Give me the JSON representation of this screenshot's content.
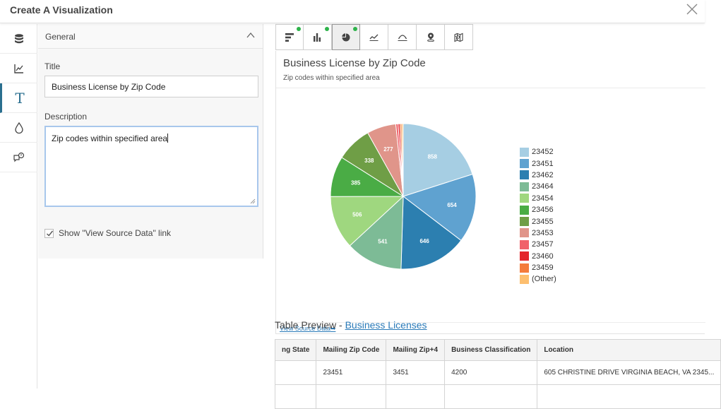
{
  "window": {
    "title": "Create A Visualization"
  },
  "icon_rail": {
    "items": [
      {
        "icon": "database-icon"
      },
      {
        "icon": "axis-chart-icon"
      },
      {
        "icon": "text-icon",
        "glyph": "T",
        "active": true
      },
      {
        "icon": "color-drop-icon"
      },
      {
        "icon": "tooltip-icon"
      }
    ]
  },
  "panel": {
    "section_label": "General",
    "title_label": "Title",
    "title_value": "Business License by Zip Code",
    "description_label": "Description",
    "description_value": "Zip codes within specified area",
    "show_source_label": "Show \"View Source Data\" link",
    "show_source_checked": true
  },
  "chart_tabs": [
    {
      "icon": "bar-horizontal-icon",
      "has_dot": true
    },
    {
      "icon": "column-chart-icon",
      "has_dot": true
    },
    {
      "icon": "pie-chart-icon",
      "has_dot": true,
      "active": true
    },
    {
      "icon": "line-chart-icon",
      "has_dot": false
    },
    {
      "icon": "histogram-icon",
      "has_dot": false
    },
    {
      "icon": "map-pin-icon",
      "has_dot": false
    },
    {
      "icon": "region-map-icon",
      "has_dot": false
    }
  ],
  "chart_data": {
    "type": "pie",
    "title": "Business License by Zip Code",
    "subtitle": "Zip codes within specified area",
    "legend_position": "right",
    "categories": [
      "23452",
      "23451",
      "23462",
      "23464",
      "23454",
      "23456",
      "23455",
      "23453",
      "23457",
      "23460",
      "23459",
      "(Other)"
    ],
    "values": [
      858,
      654,
      646,
      541,
      506,
      385,
      338,
      277,
      22,
      18,
      16,
      14
    ],
    "labels_shown": [
      "858",
      "654",
      "646",
      "541",
      "506",
      "385",
      "338",
      "277"
    ],
    "colors": [
      "#a6cee3",
      "#5fa2d0",
      "#2c7fb0",
      "#7dbb96",
      "#9fd77f",
      "#4aac45",
      "#6f9e46",
      "#e0958a",
      "#f0626a",
      "#e3262b",
      "#f47c3c",
      "#fdbf6f"
    ]
  },
  "legend_entries": [
    "23452",
    "23451",
    "23462",
    "23464",
    "23454",
    "23456",
    "23455",
    "23453",
    "23457",
    "23460",
    "23459",
    "(Other)"
  ],
  "view_source": "View Source Data",
  "table": {
    "title_prefix": "Table Preview - ",
    "link_text": "Business Licenses",
    "columns": [
      "ng State",
      "Mailing Zip Code",
      "Mailing Zip+4",
      "Business Classification",
      "Location"
    ],
    "rows": [
      [
        "",
        "23451",
        "3451",
        "4200",
        "605 CHRISTINE DRIVE VIRGINIA BEACH, VA 2345..."
      ],
      [
        "",
        "",
        "",
        "",
        ""
      ]
    ]
  }
}
